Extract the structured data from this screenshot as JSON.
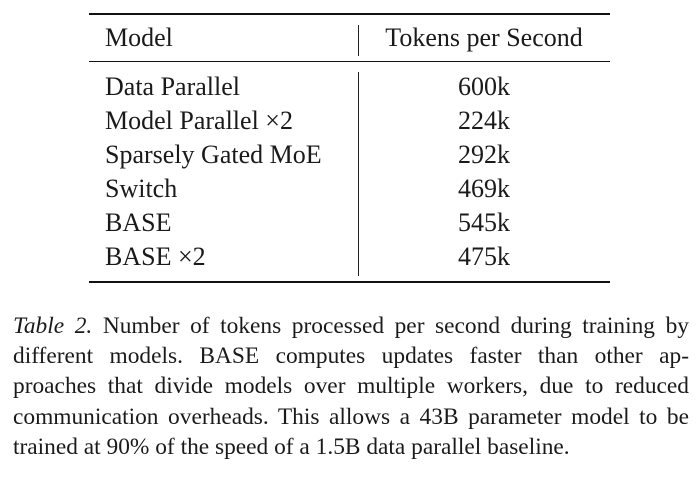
{
  "table": {
    "headers": {
      "model": "Model",
      "tokens": "Tokens per Second"
    },
    "rows": [
      {
        "model": "Data Parallel",
        "tokens": "600k"
      },
      {
        "model": "Model Parallel ×2",
        "tokens": "224k"
      },
      {
        "model": "Sparsely Gated MoE",
        "tokens": "292k"
      },
      {
        "model": "Switch",
        "tokens": "469k"
      },
      {
        "model": "BASE",
        "tokens": "545k"
      },
      {
        "model": "BASE ×2",
        "tokens": "475k"
      }
    ]
  },
  "caption": {
    "label": "Table 2.",
    "lines": [
      " Number of tokens processed per second during training",
      "by different models. BASE computes updates faster than other ap-",
      "proaches that divide models over multiple workers, due to reduced",
      "communication overheads. This allows a 43B parameter model to",
      "be trained at 90% of the speed of a 1.5B data parallel baseline."
    ]
  }
}
